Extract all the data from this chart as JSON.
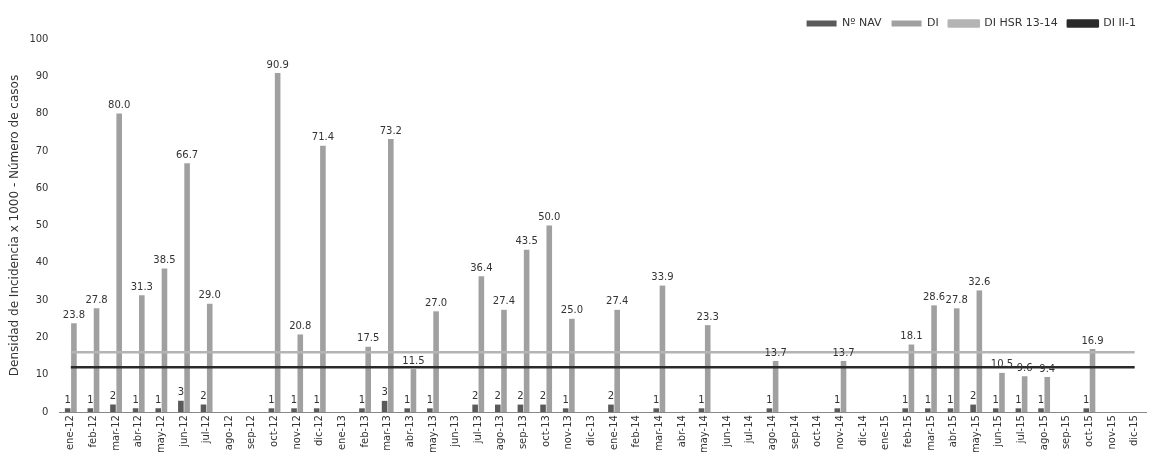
{
  "chart_data": {
    "type": "bar",
    "ylabel": "Densidad de Incidencia x 1000 - Número de casos",
    "categories": [
      "ene-12",
      "feb-12",
      "mar-12",
      "abr-12",
      "may-12",
      "jun-12",
      "jul-12",
      "ago-12",
      "sep-12",
      "oct-12",
      "nov-12",
      "dic-12",
      "ene-13",
      "feb-13",
      "mar-13",
      "abr-13",
      "may-13",
      "jun-13",
      "jul-13",
      "ago-13",
      "sep-13",
      "oct-13",
      "nov-13",
      "dic-13",
      "ene-14",
      "feb-14",
      "mar-14",
      "abr-14",
      "may-14",
      "jun-14",
      "jul-14",
      "ago-14",
      "sep-14",
      "oct-14",
      "nov-14",
      "dic-14",
      "ene-15",
      "feb-15",
      "mar-15",
      "abr-15",
      "may-15",
      "jun-15",
      "jul-15",
      "ago-15",
      "sep-15",
      "oct-15",
      "nov-15",
      "dic-15"
    ],
    "series": [
      {
        "name": "Nº NAV",
        "color": "#5a5a5a",
        "values": [
          1,
          1,
          2,
          1,
          1,
          3,
          2,
          null,
          null,
          1,
          1,
          1,
          null,
          1,
          3,
          1,
          1,
          null,
          2,
          2,
          2,
          2,
          1,
          null,
          2,
          null,
          1,
          null,
          1,
          null,
          null,
          1,
          null,
          null,
          1,
          null,
          null,
          1,
          1,
          1,
          2,
          1,
          1,
          1,
          null,
          1,
          null,
          null
        ],
        "value_labels": [
          "1",
          "1",
          "2",
          "1",
          "1",
          "3",
          "2",
          null,
          null,
          "1",
          "1",
          "1",
          null,
          "1",
          "3",
          "1",
          "1",
          null,
          "2",
          "2",
          "2",
          "2",
          "1",
          null,
          "2",
          null,
          "1",
          null,
          "1",
          null,
          null,
          "1",
          null,
          null,
          "1",
          null,
          null,
          "1",
          "1",
          "1",
          "2",
          "1",
          "1",
          "1",
          null,
          "1",
          null,
          null
        ]
      },
      {
        "name": "DI",
        "color": "#a0a0a0",
        "values": [
          23.8,
          27.8,
          80.0,
          31.3,
          38.5,
          66.7,
          29.0,
          null,
          null,
          90.9,
          20.8,
          71.4,
          null,
          17.5,
          73.2,
          11.5,
          27.0,
          null,
          36.4,
          27.4,
          43.5,
          50.0,
          25.0,
          null,
          27.4,
          null,
          33.9,
          null,
          23.3,
          null,
          null,
          13.7,
          null,
          null,
          13.7,
          null,
          null,
          18.1,
          28.6,
          27.8,
          32.6,
          10.5,
          9.6,
          9.4,
          null,
          16.9,
          null,
          null
        ],
        "value_labels": [
          "23.8",
          "27.8",
          "80.0",
          "31.3",
          "38.5",
          "66.7",
          "29.0",
          null,
          null,
          "90.9",
          "20.8",
          "71.4",
          null,
          "17.5",
          "73.2",
          "11.5",
          "27.0",
          null,
          "36.4",
          "27.4",
          "43.5",
          "50.0",
          "25.0",
          null,
          "27.4",
          null,
          "33.9",
          null,
          "23.3",
          null,
          null,
          "13.7",
          null,
          null,
          "13.7",
          null,
          null,
          "18.1",
          "28.6",
          "27.8",
          "32.6",
          "10.5",
          "9.6",
          "9.4",
          null,
          "16.9",
          null,
          null
        ]
      },
      {
        "name": "DI HSR 13-14",
        "type": "line",
        "color": "#b4b4b4",
        "values": [
          16,
          16,
          16,
          16,
          16,
          16,
          16,
          16,
          16,
          16,
          16,
          16,
          16,
          16,
          16,
          16,
          16,
          16,
          16,
          16,
          16,
          16,
          16,
          16,
          16,
          16,
          16,
          16,
          16,
          16,
          16,
          16,
          16,
          16,
          16,
          16,
          16,
          16,
          16,
          16,
          16,
          16,
          16,
          16,
          16,
          16,
          16,
          16
        ]
      },
      {
        "name": "DI II-1",
        "type": "line",
        "color": "#2a2a2a",
        "values": [
          12,
          12,
          12,
          12,
          12,
          12,
          12,
          12,
          12,
          12,
          12,
          12,
          12,
          12,
          12,
          12,
          12,
          12,
          12,
          12,
          12,
          12,
          12,
          12,
          12,
          12,
          12,
          12,
          12,
          12,
          12,
          12,
          12,
          12,
          12,
          12,
          12,
          12,
          12,
          12,
          12,
          12,
          12,
          12,
          12,
          12,
          12,
          12
        ]
      }
    ],
    "ylim": [
      0,
      100
    ],
    "yticks": [
      0,
      10,
      20,
      30,
      40,
      50,
      60,
      70,
      80,
      90,
      100
    ],
    "grid": false,
    "legend": "top right"
  }
}
